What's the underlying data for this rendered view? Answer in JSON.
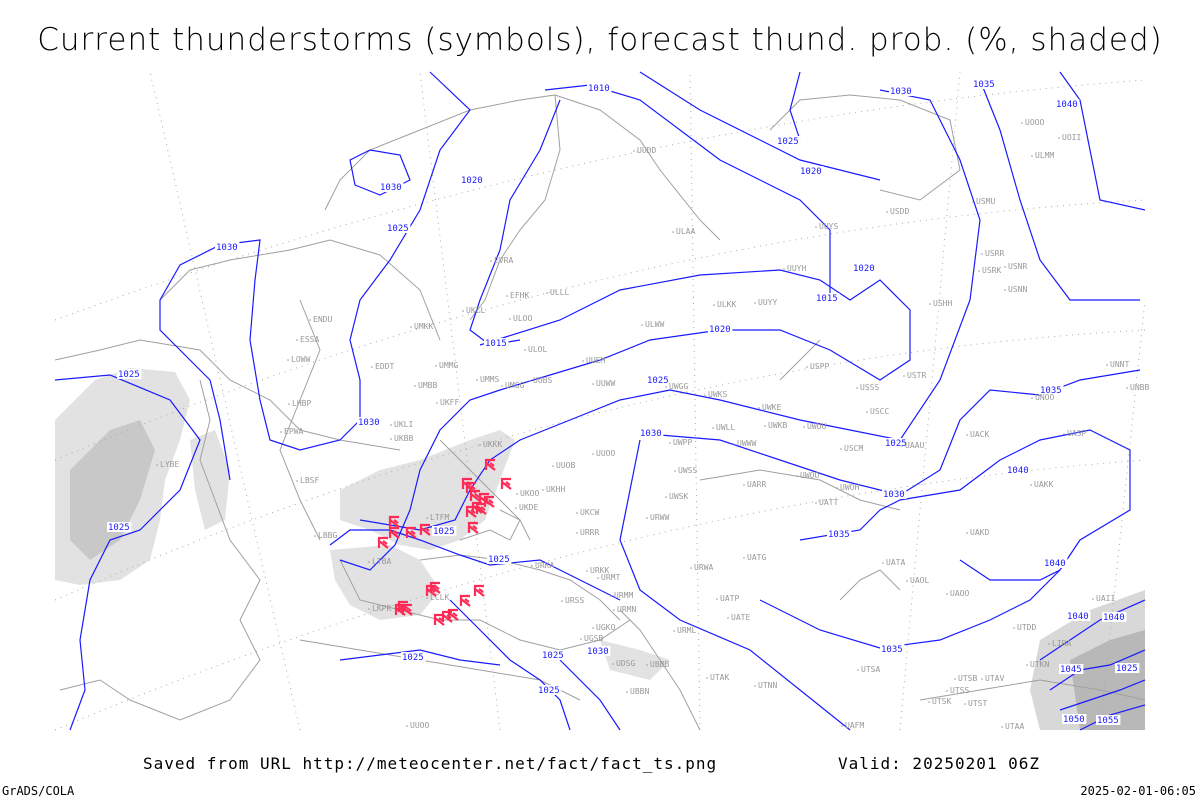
{
  "title": "Current thunderstorms (symbols), forecast thund. prob. (%, shaded)",
  "footer": {
    "saved": "Saved from URL http://meteocenter.net/fact/fact_ts.png",
    "valid": "Valid: 20250201 06Z",
    "software": "GrADS/COLA",
    "timestamp": "2025-02-01-06:05"
  },
  "colors": {
    "isobar": "#1a1aff",
    "coast": "#a0a0a0",
    "shade_light": "#e2e2e2",
    "shade_dark": "#c8c8c8",
    "storm_symbol": "#ff2a55"
  },
  "map": {
    "projection_grid": "dotted",
    "isobar_labels": [
      "1010",
      "1030",
      "1035",
      "1040",
      "1025",
      "1020",
      "1030",
      "1020",
      "1025",
      "1030",
      "1020",
      "1015",
      "1020",
      "1015",
      "1025",
      "1025",
      "1030",
      "1030",
      "1025",
      "1035",
      "1040",
      "1030",
      "1025",
      "1025",
      "1025",
      "1035",
      "1040",
      "1035",
      "1025",
      "1025",
      "1030",
      "1025",
      "1040",
      "1040",
      "1045",
      "1050",
      "1055",
      "1025"
    ],
    "stations": [
      "ENDU",
      "UUYH",
      "UUYS",
      "ULAA",
      "ULLL",
      "ULOO",
      "ULOL",
      "UMKK",
      "UMMG",
      "UMBB",
      "UMMS",
      "UMGG",
      "UUBS",
      "UUEM",
      "ULWW",
      "ULKK",
      "UUYY",
      "UUWW",
      "UWGG",
      "UWKS",
      "UWKE",
      "UWKB",
      "UWUU",
      "UWLL",
      "UWWW",
      "UUOB",
      "UUOO",
      "UKKK",
      "UKHH",
      "UKOO",
      "UKDE",
      "UKCW",
      "URRR",
      "UWPP",
      "UWSS",
      "URWW",
      "UWSK",
      "UARR",
      "UWOO",
      "UWOH",
      "UATT",
      "USCM",
      "USCC",
      "USSS",
      "USPP",
      "USTR",
      "USHH",
      "USDD",
      "USMU",
      "USRR",
      "USRK",
      "USNR",
      "USNN",
      "UAAU",
      "UACK",
      "UASP",
      "UAKK",
      "UAKD",
      "UNOO",
      "UNNT",
      "UNBB",
      "UAOL",
      "UAOO",
      "UATA",
      "UATG",
      "URWA",
      "UATP",
      "UATE",
      "URMT",
      "URMM",
      "URMN",
      "URML",
      "URSS",
      "URKA",
      "URKK",
      "UGKO",
      "UGSB",
      "UDSG",
      "UBBB",
      "UBBN",
      "UTAK",
      "UTNN",
      "UTSA",
      "UTSB",
      "UTSS",
      "UTAV",
      "UTSK",
      "UTST",
      "UTAA",
      "UAFM",
      "UAII",
      "UTDD",
      "UTKN",
      "LIRA",
      "LYBE",
      "LBSF",
      "LBBG",
      "LTBA",
      "LKPR",
      "LOWW",
      "LHBP",
      "EPWA",
      "EDDT",
      "ESSA",
      "EFHK",
      "EVRA",
      "UKLL",
      "UKLI",
      "UKBB",
      "UKFF",
      "LTFM",
      "LCLK",
      "UUOO",
      "UOOO",
      "UOII",
      "ULMM",
      "UUDD"
    ],
    "thunderstorm_symbol_count": 26
  }
}
